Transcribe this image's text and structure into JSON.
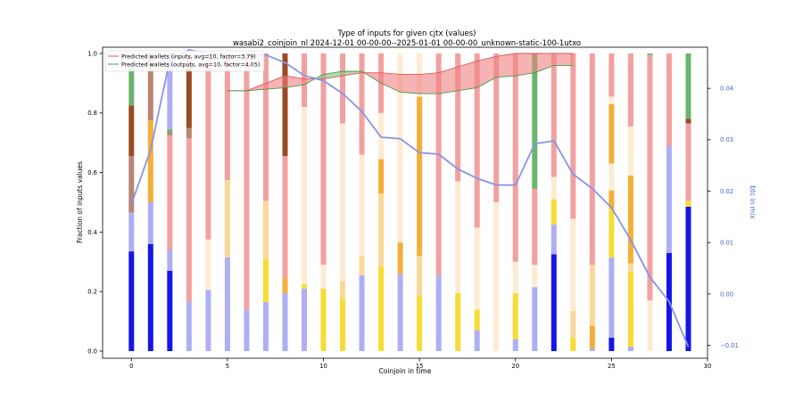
{
  "chart_data": {
    "type": "bar",
    "title": "Type of inputs for given cjtx (values)",
    "subtitle": "wasabi2_coinjoin_nl 2024-12-01 00-00-00--2025-01-01 00-00-00_unknown-static-100-1utxo",
    "xlabel": "Coinjoin in time",
    "ylabel": "Fraction of inputs values",
    "y2label": "btc in mix",
    "xlim": [
      -1.5,
      30
    ],
    "ylim": [
      0,
      1.0
    ],
    "y2lim": [
      -0.0125,
      0.048
    ],
    "x_ticks": [
      0,
      5,
      10,
      15,
      20,
      25,
      30
    ],
    "y_ticks": [
      0.0,
      0.2,
      0.4,
      0.6,
      0.8,
      1.0
    ],
    "y2_ticks": [
      -0.01,
      0.0,
      0.01,
      0.02,
      0.03,
      0.04
    ],
    "grid": false,
    "legend": {
      "placement": "top-left",
      "entries": [
        "Predicted wallets (inputs, avg=10, factor=3.79)",
        "Predicted wallets (outputs, avg=10, factor=4.05)"
      ]
    },
    "colors": {
      "blue": "#1515e8",
      "lightblue": "#aeaef5",
      "yellow": "#f7dc33",
      "lightorange": "#fad998",
      "orange": "#f5ae38",
      "cream": "#fdecd2",
      "pink": "#f3a0a0",
      "lightbrown": "#b98474",
      "brown": "#9b4a22",
      "green": "#6cb56c",
      "redline": "#e05656",
      "redfill": "#f08080",
      "greenline": "#4a9a4a",
      "greenfill": "#7fc07f",
      "btcline": "#8595e6",
      "axis2": "#4466cc"
    },
    "bars": [
      [
        [
          "blue",
          0.335
        ],
        [
          "lightblue",
          0.13
        ],
        [
          "lightbrown",
          0.19
        ],
        [
          "brown",
          0.17
        ],
        [
          "green",
          0.125
        ]
      ],
      [
        [
          "blue",
          0.36
        ],
        [
          "lightblue",
          0.14
        ],
        [
          "orange",
          0.275
        ],
        [
          "lightbrown",
          0.225
        ]
      ],
      [
        [
          "blue",
          0.27
        ],
        [
          "lightblue",
          0.07
        ],
        [
          "pink",
          0.385
        ],
        [
          "lightbrown",
          0.01
        ],
        [
          "green",
          0.01
        ],
        [
          "lightblue",
          0.255
        ]
      ],
      [
        [
          "lightblue",
          0.165
        ],
        [
          "pink",
          0.55
        ],
        [
          "lightbrown",
          0.035
        ],
        [
          "brown",
          0.2
        ],
        [
          "pink",
          0.05
        ]
      ],
      [
        [
          "lightblue",
          0.205
        ],
        [
          "cream",
          0.17
        ],
        [
          "pink",
          0.625
        ]
      ],
      [
        [
          "lightblue",
          0.315
        ],
        [
          "lightorange",
          0.26
        ],
        [
          "pink",
          0.425
        ]
      ],
      [
        [
          "lightblue",
          0.14
        ],
        [
          "pink",
          0.86
        ]
      ],
      [
        [
          "lightblue",
          0.165
        ],
        [
          "yellow",
          0.145
        ],
        [
          "lightorange",
          0.195
        ],
        [
          "pink",
          0.495
        ]
      ],
      [
        [
          "lightblue",
          0.195
        ],
        [
          "orange",
          0.05
        ],
        [
          "pink",
          0.41
        ],
        [
          "brown",
          0.345
        ]
      ],
      [
        [
          "lightblue",
          0.21
        ],
        [
          "yellow",
          0.015
        ],
        [
          "cream",
          0.595
        ],
        [
          "pink",
          0.18
        ]
      ],
      [
        [
          "yellow",
          0.21
        ],
        [
          "cream",
          0.08
        ],
        [
          "pink",
          0.71
        ]
      ],
      [
        [
          "yellow",
          0.175
        ],
        [
          "lightorange",
          0.06
        ],
        [
          "cream",
          0.53
        ],
        [
          "pink",
          0.235
        ]
      ],
      [
        [
          "lightblue",
          0.255
        ],
        [
          "lightorange",
          0.065
        ],
        [
          "cream",
          0.34
        ],
        [
          "pink",
          0.34
        ]
      ],
      [
        [
          "yellow",
          0.285
        ],
        [
          "lightorange",
          0.245
        ],
        [
          "orange",
          0.115
        ],
        [
          "cream",
          0.155
        ],
        [
          "pink",
          0.2
        ]
      ],
      [
        [
          "lightblue",
          0.26
        ],
        [
          "orange",
          0.105
        ],
        [
          "cream",
          0.635
        ]
      ],
      [
        [
          "yellow",
          0.185
        ],
        [
          "lightorange",
          0.135
        ],
        [
          "orange",
          0.535
        ],
        [
          "cream",
          0.145
        ]
      ],
      [
        [
          "lightblue",
          0.255
        ],
        [
          "pink",
          0.745
        ]
      ],
      [
        [
          "yellow",
          0.195
        ],
        [
          "cream",
          0.375
        ],
        [
          "pink",
          0.43
        ]
      ],
      [
        [
          "lightblue",
          0.07
        ],
        [
          "yellow",
          0.07
        ],
        [
          "cream",
          0.275
        ],
        [
          "pink",
          0.585
        ]
      ],
      [
        [
          "cream",
          0.5
        ],
        [
          "pink",
          0.5
        ]
      ],
      [
        [
          "lightblue",
          0.04
        ],
        [
          "yellow",
          0.155
        ],
        [
          "cream",
          0.105
        ],
        [
          "pink",
          0.7
        ]
      ],
      [
        [
          "lightblue",
          0.215
        ],
        [
          "cream",
          0.075
        ],
        [
          "pink",
          0.255
        ],
        [
          "green",
          0.455
        ]
      ],
      [
        [
          "blue",
          0.325
        ],
        [
          "lightblue",
          0.1
        ],
        [
          "yellow",
          0.085
        ],
        [
          "cream",
          0.075
        ],
        [
          "pink",
          0.415
        ]
      ],
      [
        [
          "yellow",
          0.045
        ],
        [
          "lightorange",
          0.09
        ],
        [
          "cream",
          0.31
        ],
        [
          "pink",
          0.555
        ]
      ],
      [
        [
          "lightblue",
          0.01
        ],
        [
          "orange",
          0.075
        ],
        [
          "lightorange",
          0.205
        ],
        [
          "pink",
          0.71
        ]
      ],
      [
        [
          "blue",
          0.045
        ],
        [
          "lightblue",
          0.27
        ],
        [
          "yellow",
          0.165
        ],
        [
          "orange",
          0.06
        ],
        [
          "cream",
          0.09
        ],
        [
          "orange",
          0.2
        ],
        [
          "cream",
          0.025
        ],
        [
          "pink",
          0.145
        ]
      ],
      [
        [
          "lightblue",
          0.015
        ],
        [
          "yellow",
          0.25
        ],
        [
          "lightorange",
          0.03
        ],
        [
          "orange",
          0.295
        ],
        [
          "cream",
          0.165
        ],
        [
          "pink",
          0.245
        ]
      ],
      [
        [
          "cream",
          0.17
        ],
        [
          "pink",
          0.825
        ],
        [
          "green",
          0.005
        ]
      ],
      [
        [
          "blue",
          0.33
        ],
        [
          "lightblue",
          0.36
        ],
        [
          "pink",
          0.31
        ]
      ],
      [
        [
          "blue",
          0.485
        ],
        [
          "yellow",
          0.02
        ],
        [
          "pink",
          0.26
        ],
        [
          "brown",
          0.015
        ],
        [
          "green",
          0.22
        ]
      ]
    ],
    "predicted_inputs": {
      "x": [
        5,
        6,
        7,
        8,
        9,
        10,
        11,
        12,
        13,
        14,
        15,
        16,
        17,
        18,
        19,
        20,
        21,
        22,
        23
      ],
      "values": [
        0.875,
        0.875,
        0.9,
        0.925,
        0.915,
        0.915,
        0.925,
        0.935,
        0.935,
        0.93,
        0.93,
        0.935,
        0.955,
        0.975,
        0.99,
        1.0,
        1.0,
        1.0,
        1.0
      ]
    },
    "predicted_outputs": {
      "x": [
        5,
        6,
        7,
        8,
        9,
        10,
        11,
        12,
        13,
        14,
        15,
        16,
        17,
        18,
        19,
        20,
        21,
        22,
        23
      ],
      "values": [
        0.875,
        0.875,
        0.88,
        0.885,
        0.895,
        0.93,
        0.94,
        0.94,
        0.9,
        0.87,
        0.865,
        0.865,
        0.875,
        0.885,
        0.92,
        0.925,
        0.935,
        0.96,
        0.96
      ]
    },
    "btc_in_mix": {
      "x": [
        0,
        1,
        2,
        3,
        4,
        5,
        6,
        7,
        8,
        9,
        10,
        11,
        12,
        13,
        14,
        15,
        16,
        17,
        18,
        19,
        20,
        21,
        22,
        23,
        24,
        25,
        26,
        27,
        28,
        29
      ],
      "values": [
        0.0175,
        0.028,
        0.0455,
        0.0475,
        0.0467,
        0.0465,
        0.0465,
        0.0465,
        0.045,
        0.0425,
        0.0415,
        0.039,
        0.0355,
        0.0305,
        0.0302,
        0.0275,
        0.0272,
        0.0243,
        0.0225,
        0.0212,
        0.0212,
        0.0292,
        0.0298,
        0.0233,
        0.0205,
        0.0168,
        0.0105,
        0.0033,
        -0.0015,
        -0.0103
      ]
    }
  }
}
